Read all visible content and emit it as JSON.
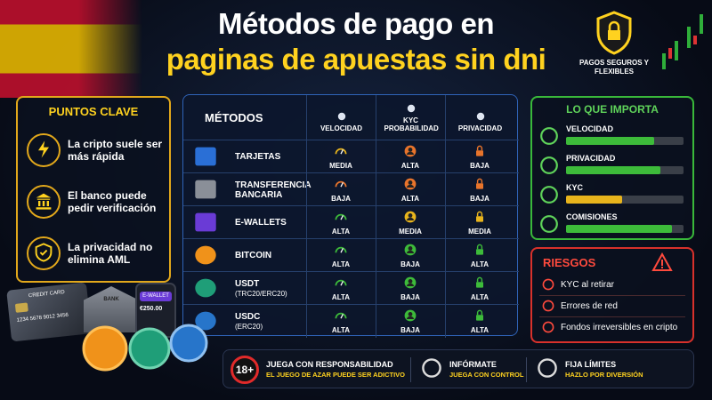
{
  "header": {
    "title_line1": "Métodos de pago en",
    "title_line2": "paginas de apuestas sin dni",
    "badge": "PAGOS SEGUROS Y FLEXIBLES"
  },
  "key_points": {
    "title": "PUNTOS CLAVE",
    "items": [
      "La cripto suele ser más rápida",
      "El banco puede pedir verificación",
      "La privacidad no elimina AML"
    ]
  },
  "table": {
    "headers": [
      "MÉTODOS",
      "VELOCIDAD",
      "KYC PROBABILIDAD",
      "PRIVACIDAD"
    ],
    "rows": [
      {
        "name": "TARJETAS",
        "cells": [
          "MEDIA",
          "ALTA",
          "BAJA"
        ]
      },
      {
        "name": "TRANSFERENCIA BANCARIA",
        "cells": [
          "BAJA",
          "ALTA",
          "BAJA"
        ]
      },
      {
        "name": "E-WALLETS",
        "cells": [
          "ALTA",
          "MEDIA",
          "MEDIA"
        ]
      },
      {
        "name": "BITCOIN",
        "cells": [
          "ALTA",
          "BAJA",
          "ALTA"
        ]
      },
      {
        "name": "USDT",
        "sub": "(TRC20/ERC20)",
        "cells": [
          "ALTA",
          "BAJA",
          "ALTA"
        ]
      },
      {
        "name": "USDC",
        "sub": "(ERC20)",
        "cells": [
          "ALTA",
          "BAJA",
          "ALTA"
        ]
      }
    ]
  },
  "importance": {
    "title": "LO QUE IMPORTA",
    "items": [
      {
        "label": "VELOCIDAD",
        "value": 75,
        "color": "#3dbb3a"
      },
      {
        "label": "PRIVACIDAD",
        "value": 80,
        "color": "#3dbb3a"
      },
      {
        "label": "KYC",
        "value": 48,
        "color": "#e8b41c"
      },
      {
        "label": "COMISIONES",
        "value": 90,
        "color": "#3dbb3a"
      }
    ]
  },
  "risks": {
    "title": "RIESGOS",
    "items": [
      "KYC al retirar",
      "Errores de red",
      "Fondos irreversibles en cripto"
    ]
  },
  "footer": {
    "items": [
      {
        "badge": "18+",
        "title": "JUEGA CON RESPONSABILIDAD",
        "subtitle": "EL JUEGO DE AZAR PUEDE SER ADICTIVO"
      },
      {
        "title": "INFÓRMATE",
        "subtitle": "JUEGA CON CONTROL"
      },
      {
        "title": "FIJA LÍMITES",
        "subtitle": "HAZLO POR DIVERSIÓN"
      }
    ]
  },
  "decor": {
    "card_label": "CREDIT CARD",
    "card_number": "1234 5678 9012 3456",
    "bank": "BANK",
    "wallet": "E-WALLET",
    "wallet_amount": "€250.00"
  }
}
